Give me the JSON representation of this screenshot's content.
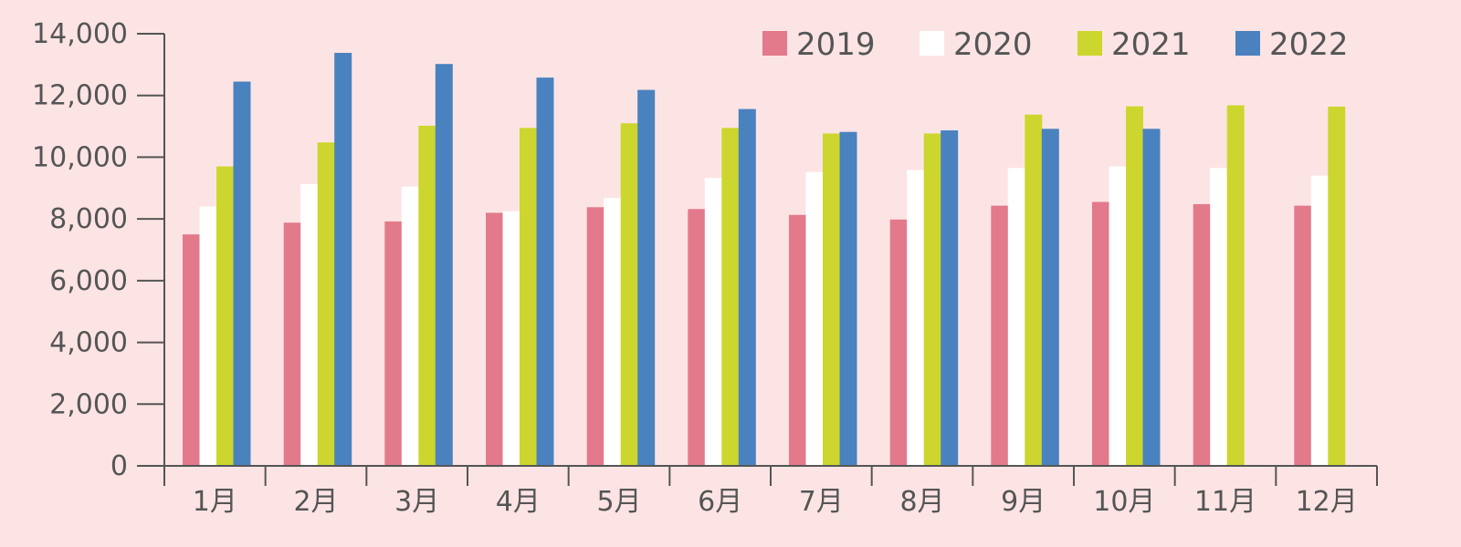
{
  "chart_data": {
    "type": "bar",
    "categories": [
      "1月",
      "2月",
      "3月",
      "4月",
      "5月",
      "6月",
      "7月",
      "8月",
      "9月",
      "10月",
      "11月",
      "12月"
    ],
    "series": [
      {
        "name": "2019",
        "color": "#e27a8c",
        "values": [
          7500,
          7880,
          7920,
          8200,
          8380,
          8320,
          8130,
          7980,
          8430,
          8550,
          8480,
          8430
        ]
      },
      {
        "name": "2020",
        "color": "#ffffff",
        "values": [
          8400,
          9130,
          9050,
          8250,
          8680,
          9330,
          9520,
          9580,
          9650,
          9700,
          9650,
          9400
        ]
      },
      {
        "name": "2021",
        "color": "#cdd62e",
        "values": [
          9700,
          10480,
          11020,
          10950,
          11100,
          10950,
          10770,
          10770,
          11380,
          11650,
          11680,
          11640
        ]
      },
      {
        "name": "2022",
        "color": "#4a82bf",
        "values": [
          12450,
          13380,
          13020,
          12580,
          12180,
          11560,
          10820,
          10870,
          10920,
          10920,
          null,
          null
        ]
      }
    ],
    "ylim": [
      0,
      14000
    ],
    "yticks": [
      "0",
      "2,000",
      "4,000",
      "6,000",
      "8,000",
      "10,000",
      "12,000",
      "14,000"
    ],
    "legend_position": "top-right",
    "grid": false
  }
}
